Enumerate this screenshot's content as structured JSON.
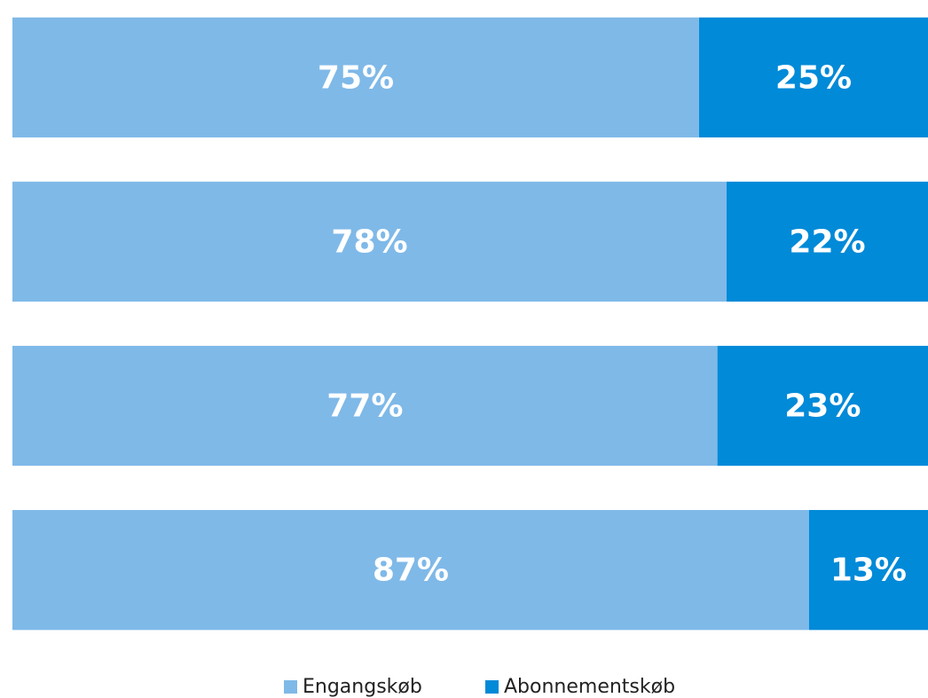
{
  "chart_data": {
    "type": "stacked_barh",
    "categories": [
      null,
      null,
      null,
      null
    ],
    "series": [
      {
        "name": "Engangskøb",
        "color": "#7fb9e8",
        "values": [
          75,
          78,
          77,
          87
        ],
        "value_labels": [
          "75%",
          "78%",
          "77%",
          "87%"
        ]
      },
      {
        "name": "Abonnementskøb",
        "color": "#008ad8",
        "values": [
          25,
          22,
          23,
          13
        ],
        "value_labels": [
          "25%",
          "22%",
          "23%",
          "13%"
        ]
      }
    ],
    "xlim": [
      0,
      100
    ],
    "legend": "bottom"
  }
}
